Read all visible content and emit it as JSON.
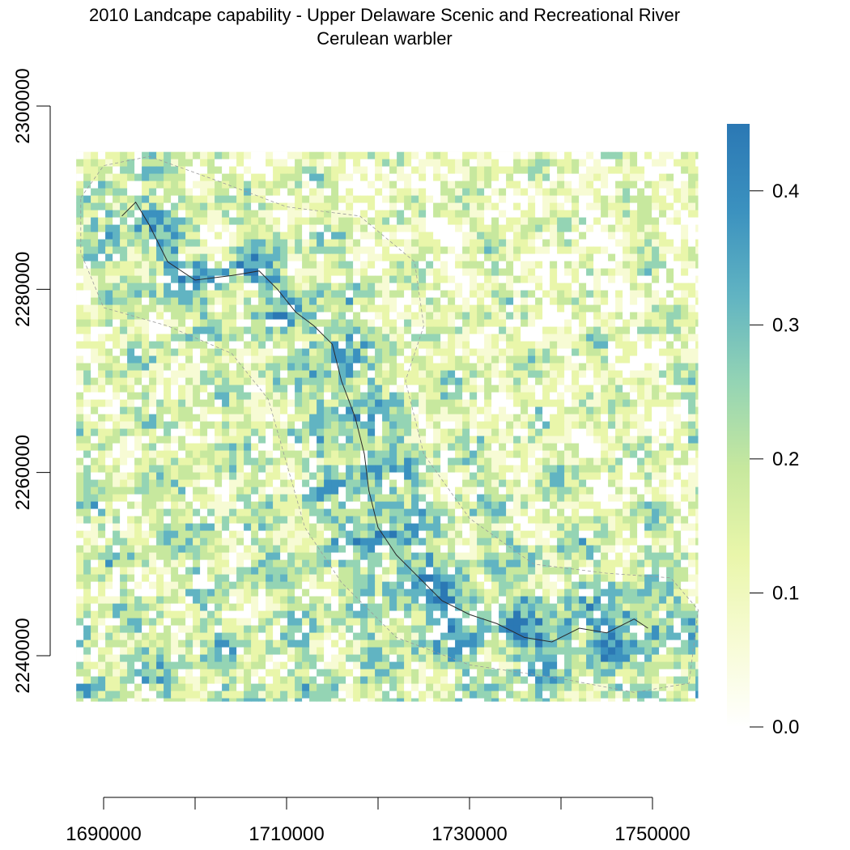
{
  "title": {
    "line1": "2010 Landcape capability - Upper Delaware Scenic and Recreational River",
    "line2": "Cerulean warbler"
  },
  "colors": {
    "scale": [
      "#ffffff",
      "#f7fbd4",
      "#e9f6aa",
      "#c7e89e",
      "#94d4b4",
      "#61b4c2",
      "#3b91bf",
      "#2b78b4"
    ],
    "boundary": "#2a2a2a",
    "buffer": "#9a9a9a"
  },
  "chart_data": {
    "type": "heatmap",
    "xlabel": "",
    "ylabel": "",
    "xlim": [
      1684000,
      1755000
    ],
    "ylim": [
      2232000,
      2302000
    ],
    "raster_extent": {
      "x": [
        1687000,
        1755000
      ],
      "y": [
        2235000,
        2295000
      ]
    },
    "x_ticks": [
      1690000,
      1700000,
      1710000,
      1720000,
      1730000,
      1740000,
      1750000
    ],
    "x_tick_labels": [
      "1690000",
      "",
      "1710000",
      "",
      "1730000",
      "",
      "1750000"
    ],
    "y_ticks": [
      2240000,
      2260000,
      2280000,
      2300000
    ],
    "y_tick_labels": [
      "2240000",
      "2260000",
      "2280000",
      "2300000"
    ],
    "legend": {
      "position": "right",
      "min": 0.0,
      "max": 0.45,
      "ticks": [
        0.0,
        0.1,
        0.2,
        0.3,
        0.4
      ],
      "tick_labels": [
        "0.0",
        "0.1",
        "0.2",
        "0.3",
        "0.4"
      ]
    },
    "river_corridor": [
      [
        1692000,
        2288000
      ],
      [
        1693500,
        2289500
      ],
      [
        1695000,
        2287000
      ],
      [
        1697000,
        2283000
      ],
      [
        1700000,
        2281000
      ],
      [
        1704000,
        2281500
      ],
      [
        1707000,
        2282000
      ],
      [
        1709000,
        2280000
      ],
      [
        1711000,
        2277500
      ],
      [
        1713000,
        2276000
      ],
      [
        1715000,
        2274000
      ],
      [
        1716000,
        2270000
      ],
      [
        1717500,
        2266000
      ],
      [
        1718500,
        2262000
      ],
      [
        1719000,
        2258000
      ],
      [
        1720000,
        2254000
      ],
      [
        1722000,
        2251000
      ],
      [
        1724500,
        2248500
      ],
      [
        1727000,
        2246000
      ],
      [
        1730000,
        2244500
      ],
      [
        1733000,
        2243500
      ],
      [
        1736000,
        2242000
      ],
      [
        1739000,
        2241500
      ],
      [
        1742000,
        2243000
      ],
      [
        1745000,
        2242500
      ],
      [
        1748000,
        2244000
      ],
      [
        1749500,
        2243000
      ]
    ],
    "buffer_outline": [
      [
        1687500,
        2290000
      ],
      [
        1690000,
        2293500
      ],
      [
        1695000,
        2294500
      ],
      [
        1702000,
        2292000
      ],
      [
        1710000,
        2289000
      ],
      [
        1718000,
        2288000
      ],
      [
        1724000,
        2283000
      ],
      [
        1725000,
        2276000
      ],
      [
        1723000,
        2270000
      ],
      [
        1725000,
        2262000
      ],
      [
        1730000,
        2255000
      ],
      [
        1737000,
        2250000
      ],
      [
        1745000,
        2249000
      ],
      [
        1752000,
        2248500
      ],
      [
        1755000,
        2245000
      ],
      [
        1754000,
        2237000
      ],
      [
        1748000,
        2236000
      ],
      [
        1740000,
        2237500
      ],
      [
        1730000,
        2239000
      ],
      [
        1722000,
        2242000
      ],
      [
        1716000,
        2248000
      ],
      [
        1712000,
        2254000
      ],
      [
        1710000,
        2261000
      ],
      [
        1708000,
        2268000
      ],
      [
        1704000,
        2273000
      ],
      [
        1697000,
        2276000
      ],
      [
        1690000,
        2278000
      ],
      [
        1687500,
        2284000
      ]
    ]
  }
}
